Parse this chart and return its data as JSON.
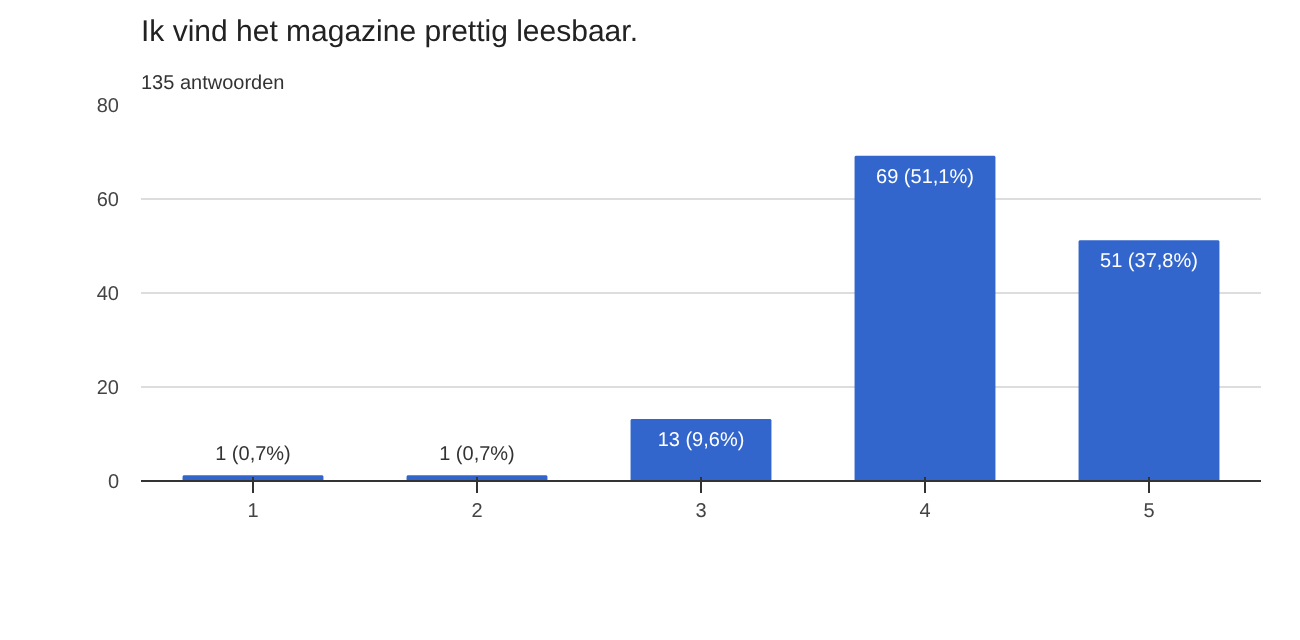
{
  "chart_data": {
    "type": "bar",
    "title": "Ik vind het magazine prettig leesbaar.",
    "subtitle": "135 antwoorden",
    "categories": [
      "1",
      "2",
      "3",
      "4",
      "5"
    ],
    "values": [
      1,
      1,
      13,
      69,
      51
    ],
    "value_labels": [
      "1 (0,7%)",
      "1 (0,7%)",
      "13 (9,6%)",
      "69 (51,1%)",
      "51 (37,8%)"
    ],
    "color": "#3366cc",
    "ylim": [
      0,
      80
    ],
    "yticks": [
      0,
      20,
      40,
      60,
      80
    ],
    "grid": "y"
  }
}
